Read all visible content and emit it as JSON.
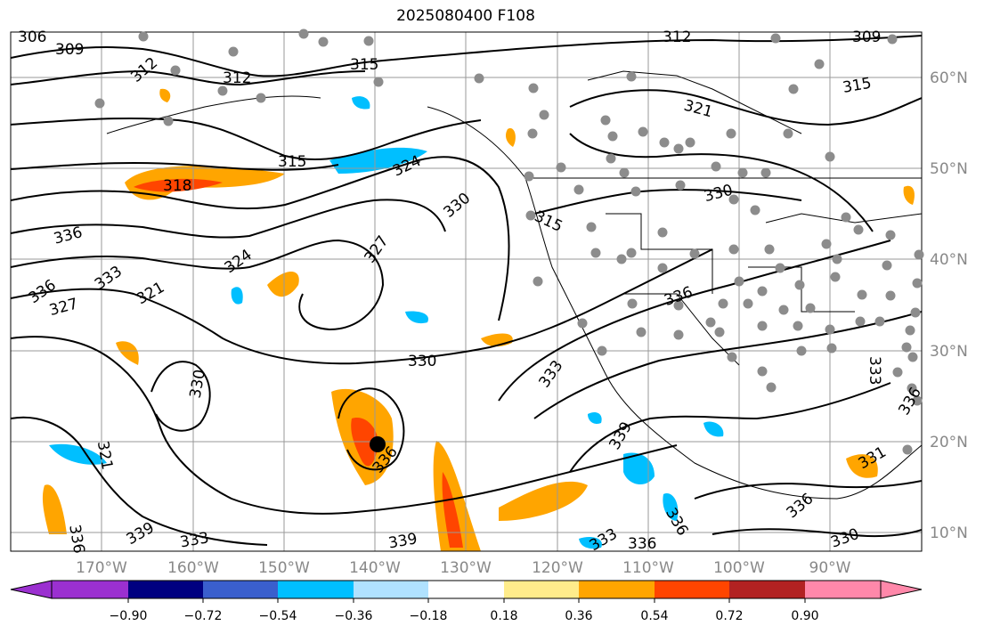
{
  "title": "2025080400 F108",
  "map": {
    "longitude_labels": [
      "170°W",
      "160°W",
      "150°W",
      "140°W",
      "130°W",
      "120°W",
      "110°W",
      "100°W",
      "90°W"
    ],
    "latitude_labels": [
      "60°N",
      "50°N",
      "40°N",
      "30°N",
      "20°N",
      "10°N"
    ],
    "contour_labels": [
      "306",
      "309",
      "312",
      "312",
      "315",
      "312",
      "309",
      "315",
      "321",
      "315",
      "318",
      "324",
      "330",
      "330",
      "327",
      "315",
      "324",
      "336",
      "336",
      "333",
      "327",
      "321",
      "336",
      "330",
      "333",
      "330",
      "321",
      "336",
      "333",
      "339",
      "336",
      "331",
      "336",
      "339",
      "333",
      "339",
      "333",
      "336",
      "336",
      "330",
      "336"
    ],
    "colors": {
      "contour": "#000000",
      "grid": "#999999",
      "station_dot": "#8c8c8c",
      "storm_center": "#000000"
    }
  },
  "colorbar": {
    "labels": [
      "−0.90",
      "−0.72",
      "−0.54",
      "−0.36",
      "−0.18",
      "0.18",
      "0.36",
      "0.54",
      "0.72",
      "0.90"
    ],
    "colors": [
      "#9b30d0",
      "#000080",
      "#3a5fcd",
      "#00bfff",
      "#b0e2ff",
      "#ffffff",
      "#ffec8b",
      "#ffa500",
      "#ff4500",
      "#b22222",
      "#ff88aa"
    ]
  }
}
